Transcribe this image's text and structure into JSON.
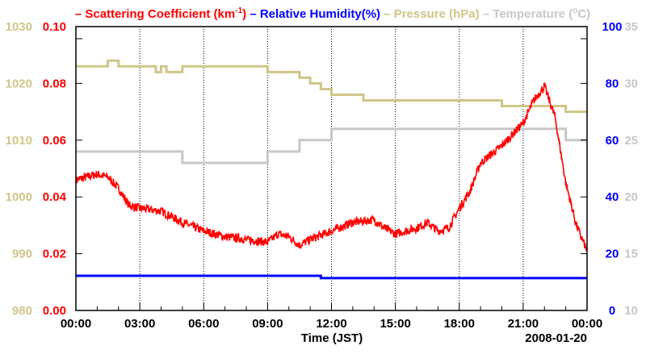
{
  "chart_data": {
    "type": "line",
    "legend": [
      {
        "prefix": "– ",
        "text": "Scattering Coefficient (km",
        "sup": "-1",
        "suffix": ")",
        "color": "#ff0000"
      },
      {
        "prefix": " – ",
        "text": "Relative Humidity(%)",
        "color": "#0000ff"
      },
      {
        "prefix": " – ",
        "text": "Pressure (hPa)",
        "color": "#cfc688"
      },
      {
        "prefix": " – ",
        "text": "Temperature (",
        "sup": "o",
        "suffix": "C)",
        "color": "#c8c8c8"
      }
    ],
    "legend_placement": "top",
    "xlabel": "Time (JST)",
    "date_label": "2008-01-20",
    "xlim": [
      0,
      24
    ],
    "x_ticks": [
      "00:00",
      "03:00",
      "06:00",
      "09:00",
      "12:00",
      "15:00",
      "18:00",
      "21:00",
      "00:00"
    ],
    "axes": {
      "pressure": {
        "range": [
          980,
          1030
        ],
        "ticks": [
          "980",
          "990",
          "1000",
          "1010",
          "1020",
          "1030"
        ],
        "color": "#cfc688",
        "side": "left-outer"
      },
      "scattering": {
        "range": [
          0,
          0.1
        ],
        "ticks": [
          "0.00",
          "0.02",
          "0.04",
          "0.06",
          "0.08",
          "0.10"
        ],
        "color": "#ff0000",
        "side": "left-inner"
      },
      "humidity": {
        "range": [
          0,
          100
        ],
        "ticks": [
          "0",
          "20",
          "40",
          "60",
          "80",
          "100"
        ],
        "color": "#0000ff",
        "side": "right-inner"
      },
      "temperature": {
        "range": [
          10,
          35
        ],
        "ticks": [
          "10",
          "15",
          "20",
          "25",
          "30",
          "35"
        ],
        "color": "#c8c8c8",
        "side": "right-outer"
      }
    },
    "series": [
      {
        "name": "Pressure",
        "axis": "pressure",
        "color": "#cfc688",
        "step": true,
        "x": [
          0,
          1.5,
          2,
          3.75,
          4,
          4.25,
          5,
          9,
          10.5,
          11,
          11.5,
          12,
          13.5,
          20,
          22.5,
          23,
          24
        ],
        "y": [
          1023,
          1024,
          1023,
          1022,
          1023,
          1022,
          1023,
          1022,
          1021,
          1020,
          1019,
          1018,
          1017,
          1016,
          1016,
          1015,
          1015
        ]
      },
      {
        "name": "Temperature",
        "axis": "temperature",
        "color": "#c8c8c8",
        "step": true,
        "x": [
          0,
          5,
          9,
          10.5,
          12,
          23,
          24
        ],
        "y": [
          24,
          23,
          24,
          25,
          26,
          25,
          25
        ]
      },
      {
        "name": "Relative Humidity",
        "axis": "humidity",
        "color": "#0000ff",
        "step": true,
        "x": [
          0,
          11.5,
          24
        ],
        "y": [
          12.2,
          11.4,
          11.4
        ]
      },
      {
        "name": "Scattering Coefficient",
        "axis": "scattering",
        "color": "#ff0000",
        "step": false,
        "noisy": true,
        "x": [
          0,
          1,
          1.5,
          2,
          2.5,
          3,
          4,
          5,
          6,
          7,
          8,
          9,
          9.5,
          10,
          10.5,
          11,
          12,
          13,
          14,
          14.5,
          15,
          16,
          16.5,
          17,
          17.5,
          18,
          18.5,
          19,
          20,
          21,
          21.5,
          22,
          22.5,
          23,
          23.5,
          24
        ],
        "y": [
          0.046,
          0.048,
          0.047,
          0.043,
          0.037,
          0.036,
          0.035,
          0.031,
          0.028,
          0.026,
          0.025,
          0.024,
          0.027,
          0.026,
          0.023,
          0.025,
          0.028,
          0.031,
          0.032,
          0.029,
          0.027,
          0.029,
          0.031,
          0.028,
          0.029,
          0.036,
          0.042,
          0.052,
          0.058,
          0.066,
          0.074,
          0.079,
          0.068,
          0.045,
          0.03,
          0.021
        ]
      }
    ]
  }
}
